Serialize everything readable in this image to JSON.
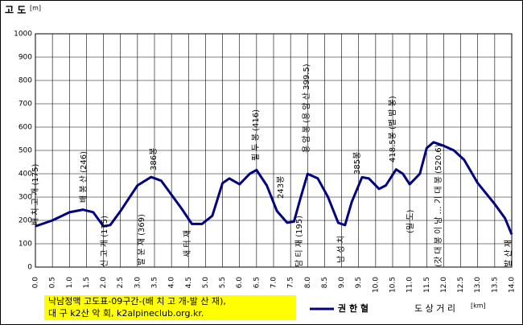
{
  "chart_data": {
    "type": "line",
    "y_label": "고 도",
    "y_unit": "[m]",
    "x_label": "도 상 거 리",
    "x_unit": "[km]",
    "note": [
      "낙남정맥 고도표-09구간-(배 치 고 개-발 산 재),",
      "대 구 k2산 악 회, k2alpineclub.org.kr."
    ],
    "x": [
      0,
      0.5,
      1.0,
      1.4,
      1.7,
      2.0,
      2.2,
      2.5,
      3.0,
      3.4,
      3.7,
      4.0,
      4.3,
      4.6,
      4.9,
      5.2,
      5.5,
      5.7,
      6.0,
      6.3,
      6.5,
      6.8,
      7.1,
      7.4,
      7.6,
      7.8,
      8.0,
      8.3,
      8.6,
      8.9,
      9.1,
      9.3,
      9.6,
      9.8,
      10.1,
      10.3,
      10.6,
      10.8,
      11.0,
      11.3,
      11.5,
      11.7,
      12.0,
      12.3,
      12.6,
      13.0,
      13.5,
      13.8,
      14.0
    ],
    "series": [
      {
        "name": "권 한 혈",
        "color": "#000080",
        "values": [
          175,
          200,
          235,
          246,
          235,
          175,
          180,
          240,
          350,
          386,
          370,
          310,
          250,
          185,
          185,
          220,
          360,
          380,
          355,
          400,
          416,
          350,
          240,
          190,
          195,
          300,
          399.5,
          380,
          300,
          190,
          180,
          280,
          385,
          380,
          335,
          350,
          418.5,
          400,
          355,
          400,
          510,
          535,
          520,
          500,
          460,
          360,
          270,
          210,
          140
        ]
      }
    ],
    "xlim": [
      0,
      14
    ],
    "ylim": [
      0,
      1000
    ],
    "xticks": [
      {
        "value": 0,
        "label": "0.0"
      },
      {
        "value": 0.5,
        "label": "0.5"
      },
      {
        "value": 1,
        "label": "1.0"
      },
      {
        "value": 1.5,
        "label": "1.5"
      },
      {
        "value": 2,
        "label": "2.0"
      },
      {
        "value": 2.5,
        "label": "2.5"
      },
      {
        "value": 3,
        "label": "3.0"
      },
      {
        "value": 3.5,
        "label": "3.5"
      },
      {
        "value": 4,
        "label": "4.0"
      },
      {
        "value": 4.5,
        "label": "4.5"
      },
      {
        "value": 5,
        "label": "5.0"
      },
      {
        "value": 5.5,
        "label": "5.5"
      },
      {
        "value": 6,
        "label": "6.0"
      },
      {
        "value": 6.5,
        "label": "6.5"
      },
      {
        "value": 7,
        "label": "7.0"
      },
      {
        "value": 7.5,
        "label": "7.5"
      },
      {
        "value": 8,
        "label": "8.0"
      },
      {
        "value": 8.5,
        "label": "8.5"
      },
      {
        "value": 9,
        "label": "9.0"
      },
      {
        "value": 9.5,
        "label": "9.5"
      },
      {
        "value": 10,
        "label": "10.0"
      },
      {
        "value": 10.5,
        "label": "10.5"
      },
      {
        "value": 11,
        "label": "11.0"
      },
      {
        "value": 11.5,
        "label": "11.5"
      },
      {
        "value": 12,
        "label": "12.0"
      },
      {
        "value": 12.5,
        "label": "12.5"
      },
      {
        "value": 13,
        "label": "13.0"
      },
      {
        "value": 13.5,
        "label": "13.5"
      },
      {
        "value": 14,
        "label": "14.0"
      }
    ],
    "yticks": [
      0,
      100,
      200,
      300,
      400,
      500,
      600,
      700,
      800,
      900,
      1000
    ],
    "grid": true,
    "annotations": [
      "배 치 고 개 (175)",
      "배 봉 산 (246)",
      "신 고 개 (175)",
      "발 운 재 (369)",
      "386봉",
      "새 터 재",
      "필 두 봉 (416)",
      "243봉",
      "담 티 재 (195)",
      "용 암 봉 (용 암 산 399.5)",
      "385봉",
      "남 성 치",
      "418.5봉 (별 밤 봉)",
      "(일 도)",
      "(갓 대 봉 이 남 … 기 대 봉 (520.6)",
      "발 산 재"
    ]
  }
}
